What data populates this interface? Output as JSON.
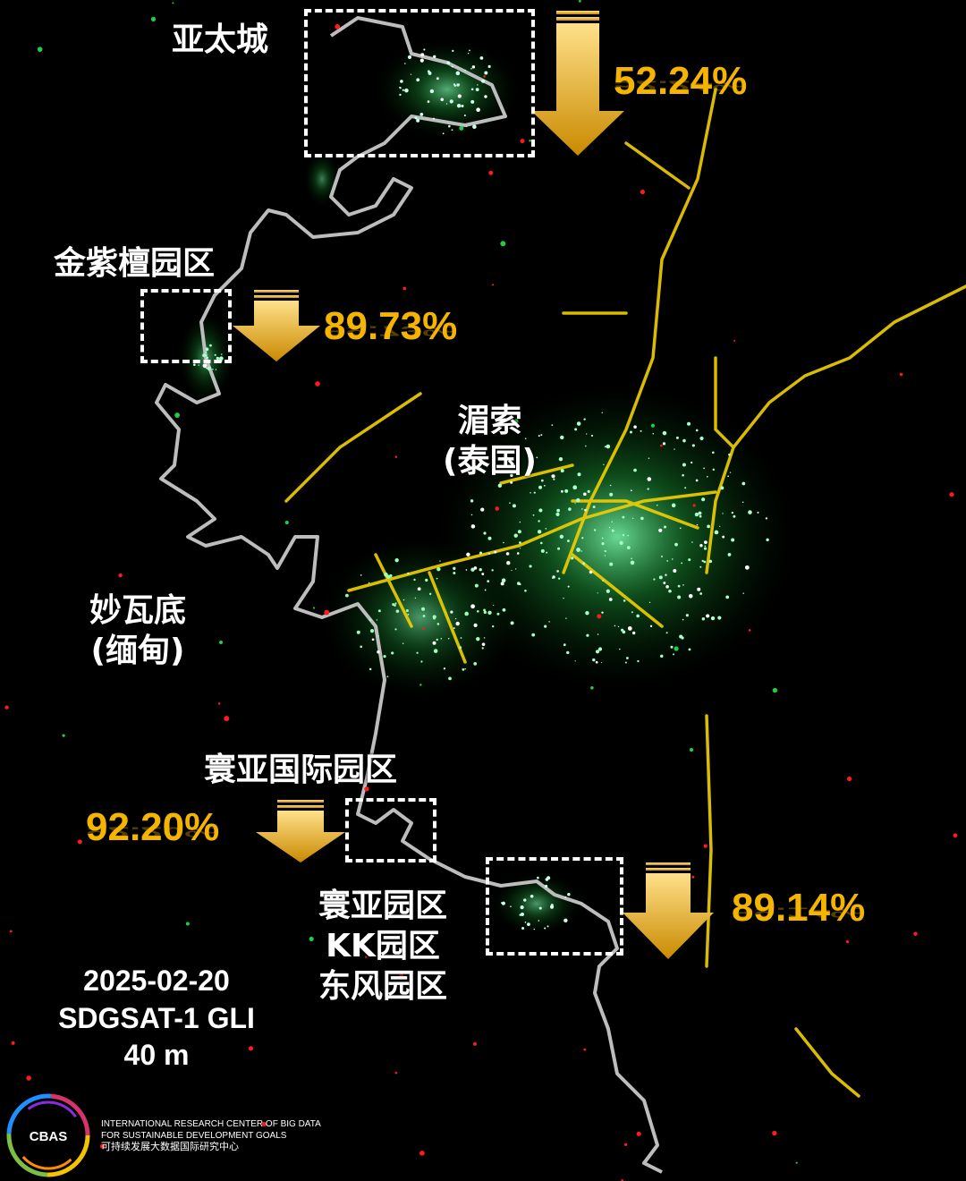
{
  "places": {
    "yataicheng": "亚太城",
    "jinzitan": "金紫檀园区",
    "maesot_name": "湄索",
    "maesot_country": "(泰国)",
    "myawaddy_name": "妙瓦底",
    "myawaddy_country": "(缅甸)",
    "huanya_intl": "寰亚国际园区",
    "south_parks": [
      "寰亚园区",
      "KK园区",
      "东风园区"
    ]
  },
  "declines": {
    "yataicheng": "52.24%",
    "jinzitan": "89.73%",
    "huanya_intl": "92.20%",
    "south_parks": "89.14%"
  },
  "info": {
    "date": "2025-02-20",
    "sensor": "SDGSAT-1 GLI",
    "resolution": "40 m"
  },
  "logo": {
    "abbr": "CBAS",
    "line1": "INTERNATIONAL RESEARCH CENTER OF BIG DATA",
    "line2": "FOR SUSTAINABLE DEVELOPMENT GOALS",
    "line3": "可持续发展大数据国际研究中心"
  },
  "colors": {
    "percent": "#f4b400",
    "arrow_top": "#ffe08a",
    "arrow_bottom": "#c98a00",
    "river": "#bdbdbd",
    "road": "#f2d000",
    "urban": "#3cff6a"
  }
}
